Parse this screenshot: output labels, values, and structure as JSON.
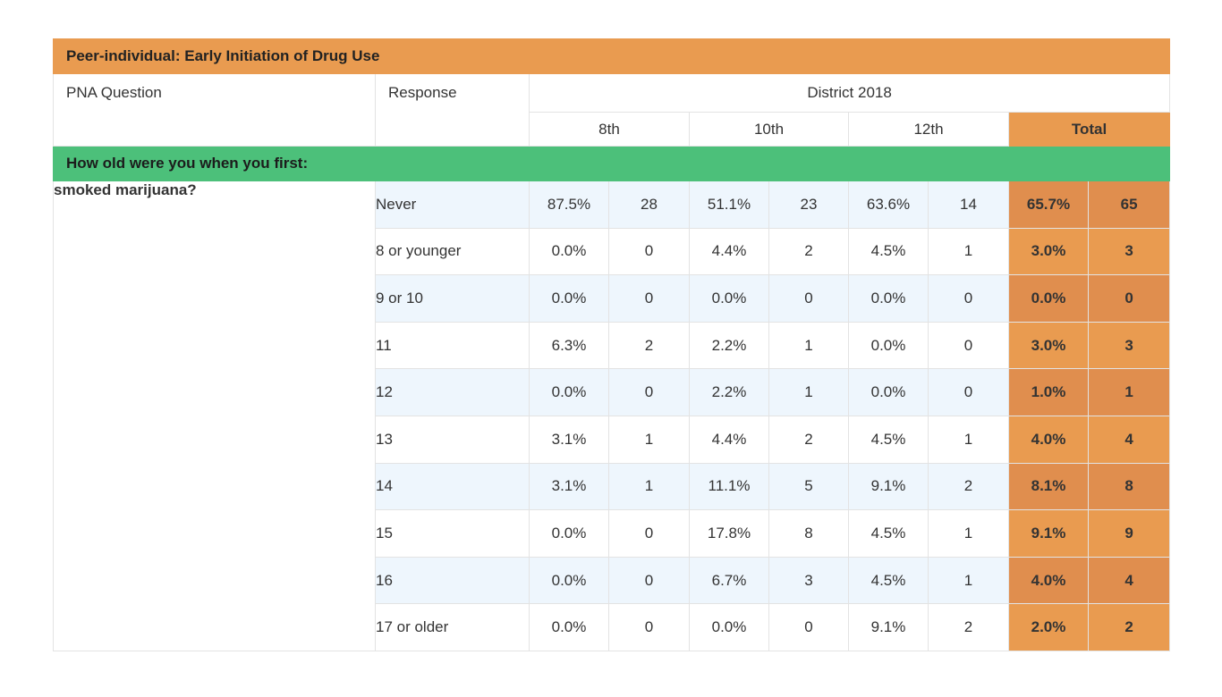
{
  "title": "Peer-individual: Early Initiation of Drug Use",
  "header": {
    "question_label": "PNA Question",
    "response_label": "Response",
    "group_label": "District 2018",
    "grades": [
      "8th",
      "10th",
      "12th"
    ],
    "total_label": "Total"
  },
  "section": "How old were you when you first:",
  "question": "smoked marijuana?",
  "rows": [
    {
      "response": "Never",
      "g8_pct": "87.5%",
      "g8_n": "28",
      "g10_pct": "51.1%",
      "g10_n": "23",
      "g12_pct": "63.6%",
      "g12_n": "14",
      "tot_pct": "65.7%",
      "tot_n": "65"
    },
    {
      "response": "8 or younger",
      "g8_pct": "0.0%",
      "g8_n": "0",
      "g10_pct": "4.4%",
      "g10_n": "2",
      "g12_pct": "4.5%",
      "g12_n": "1",
      "tot_pct": "3.0%",
      "tot_n": "3"
    },
    {
      "response": "9 or 10",
      "g8_pct": "0.0%",
      "g8_n": "0",
      "g10_pct": "0.0%",
      "g10_n": "0",
      "g12_pct": "0.0%",
      "g12_n": "0",
      "tot_pct": "0.0%",
      "tot_n": "0"
    },
    {
      "response": "11",
      "g8_pct": "6.3%",
      "g8_n": "2",
      "g10_pct": "2.2%",
      "g10_n": "1",
      "g12_pct": "0.0%",
      "g12_n": "0",
      "tot_pct": "3.0%",
      "tot_n": "3"
    },
    {
      "response": "12",
      "g8_pct": "0.0%",
      "g8_n": "0",
      "g10_pct": "2.2%",
      "g10_n": "1",
      "g12_pct": "0.0%",
      "g12_n": "0",
      "tot_pct": "1.0%",
      "tot_n": "1"
    },
    {
      "response": "13",
      "g8_pct": "3.1%",
      "g8_n": "1",
      "g10_pct": "4.4%",
      "g10_n": "2",
      "g12_pct": "4.5%",
      "g12_n": "1",
      "tot_pct": "4.0%",
      "tot_n": "4"
    },
    {
      "response": "14",
      "g8_pct": "3.1%",
      "g8_n": "1",
      "g10_pct": "11.1%",
      "g10_n": "5",
      "g12_pct": "9.1%",
      "g12_n": "2",
      "tot_pct": "8.1%",
      "tot_n": "8"
    },
    {
      "response": "15",
      "g8_pct": "0.0%",
      "g8_n": "0",
      "g10_pct": "17.8%",
      "g10_n": "8",
      "g12_pct": "4.5%",
      "g12_n": "1",
      "tot_pct": "9.1%",
      "tot_n": "9"
    },
    {
      "response": "16",
      "g8_pct": "0.0%",
      "g8_n": "0",
      "g10_pct": "6.7%",
      "g10_n": "3",
      "g12_pct": "4.5%",
      "g12_n": "1",
      "tot_pct": "4.0%",
      "tot_n": "4"
    },
    {
      "response": "17 or older",
      "g8_pct": "0.0%",
      "g8_n": "0",
      "g10_pct": "0.0%",
      "g10_n": "0",
      "g12_pct": "9.1%",
      "g12_n": "2",
      "tot_pct": "2.0%",
      "tot_n": "2"
    }
  ],
  "colors": {
    "title_bg": "#e99b50",
    "section_bg": "#4cc07a",
    "total_bg": "#e99b50",
    "total_bg_alt": "#e08e4e",
    "row_alt_bg": "#eef6fd"
  }
}
